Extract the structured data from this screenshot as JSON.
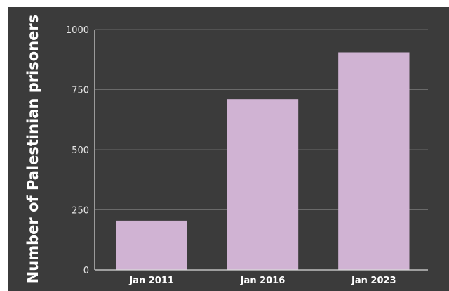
{
  "colors": {
    "background": "#3b3b3b",
    "bar": "#d0b3d3",
    "axis": "#d9d9d9",
    "grid": "#6a6a6a"
  },
  "chart_data": {
    "type": "bar",
    "title": "",
    "xlabel": "",
    "ylabel": "Number of Palestinian prisoners",
    "categories": [
      "Jan 2011",
      "Jan 2016",
      "Jan 2023"
    ],
    "values": [
      205,
      710,
      905
    ],
    "ylim": [
      0,
      1000
    ],
    "yticks": [
      0,
      250,
      500,
      750,
      1000
    ],
    "grid": true
  }
}
